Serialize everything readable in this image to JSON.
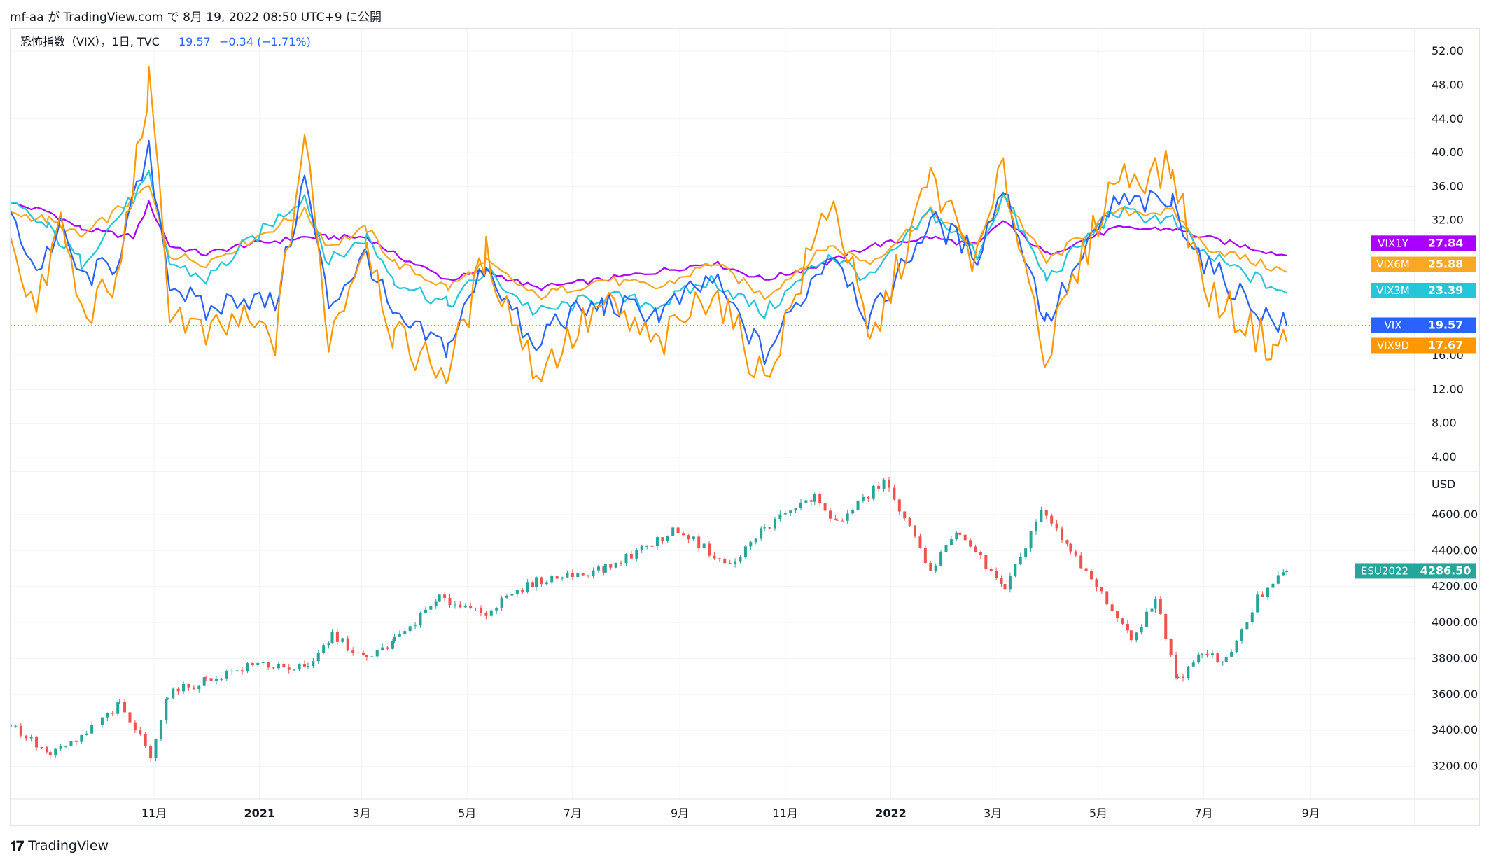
{
  "header": {
    "attribution": "mf-aa が TradingView.com で 8月 19, 2022 08:50 UTC+9 に公開"
  },
  "legend": {
    "symbol": "恐怖指数（VIX），1日, TVC",
    "price": "19.57",
    "change": "−0.34 (−1.71%)"
  },
  "footer": {
    "brand": "TradingView",
    "logo": "TV-logo-icon"
  },
  "colors": {
    "VIX": "#2962ff",
    "VIX9D": "#ff9800",
    "VIX3M": "#26c6da",
    "VIX6M": "#f9a825",
    "VIX1Y": "#aa00ff",
    "up": "#26a69a",
    "down": "#ef5350",
    "grid": "#f0f3fa",
    "axis_text": "#131722"
  },
  "chart_data": [
    {
      "type": "line",
      "title": "恐怖指数（VIX），1日, TVC",
      "y_ticks": [
        "52.00",
        "48.00",
        "44.00",
        "40.00",
        "36.00",
        "32.00",
        "16.00",
        "12.00",
        "8.00",
        "4.00"
      ],
      "ylim": [
        3,
        54
      ],
      "x_range": [
        "2020-08-10",
        "2022-10-31"
      ],
      "series": [
        {
          "name": "VIX1Y",
          "last": "27.84",
          "color": "#aa00ff",
          "points": [
            [
              "2020-08-10",
              34
            ],
            [
              "2020-09-01",
              33
            ],
            [
              "2020-09-20",
              31
            ],
            [
              "2020-10-20",
              30
            ],
            [
              "2020-10-29",
              34
            ],
            [
              "2020-11-10",
              29
            ],
            [
              "2020-12-01",
              28
            ],
            [
              "2020-12-20",
              29
            ],
            [
              "2021-01-27",
              30
            ],
            [
              "2021-02-10",
              30
            ],
            [
              "2021-03-04",
              30
            ],
            [
              "2021-03-20",
              28
            ],
            [
              "2021-04-20",
              25
            ],
            [
              "2021-05-12",
              26
            ],
            [
              "2021-06-10",
              24
            ],
            [
              "2021-07-19",
              25
            ],
            [
              "2021-08-20",
              26
            ],
            [
              "2021-09-20",
              27
            ],
            [
              "2021-10-20",
              25
            ],
            [
              "2021-11-26",
              27
            ],
            [
              "2021-12-20",
              29
            ],
            [
              "2022-01-24",
              30
            ],
            [
              "2022-02-20",
              29
            ],
            [
              "2022-03-07",
              32
            ],
            [
              "2022-04-01",
              28
            ],
            [
              "2022-05-10",
              31
            ],
            [
              "2022-06-13",
              31
            ],
            [
              "2022-07-01",
              30
            ],
            [
              "2022-08-18",
              27.84
            ]
          ]
        },
        {
          "name": "VIX6M",
          "last": "25.88",
          "color": "#f9a825",
          "points": [
            [
              "2020-08-10",
              33
            ],
            [
              "2020-09-01",
              32
            ],
            [
              "2020-09-20",
              30
            ],
            [
              "2020-10-29",
              36
            ],
            [
              "2020-11-10",
              28
            ],
            [
              "2020-12-01",
              27
            ],
            [
              "2021-01-27",
              33
            ],
            [
              "2021-02-10",
              29
            ],
            [
              "2021-03-04",
              31
            ],
            [
              "2021-03-20",
              27
            ],
            [
              "2021-04-20",
              24
            ],
            [
              "2021-05-12",
              27
            ],
            [
              "2021-06-10",
              23
            ],
            [
              "2021-07-19",
              25
            ],
            [
              "2021-08-20",
              24
            ],
            [
              "2021-09-20",
              27
            ],
            [
              "2021-10-20",
              23
            ],
            [
              "2021-11-26",
              29
            ],
            [
              "2021-12-20",
              27
            ],
            [
              "2022-01-24",
              33
            ],
            [
              "2022-02-20",
              29
            ],
            [
              "2022-03-07",
              35
            ],
            [
              "2022-04-01",
              27
            ],
            [
              "2022-05-10",
              33
            ],
            [
              "2022-06-13",
              33
            ],
            [
              "2022-07-01",
              29
            ],
            [
              "2022-08-18",
              25.88
            ]
          ]
        },
        {
          "name": "VIX3M",
          "last": "23.39",
          "color": "#26c6da",
          "points": [
            [
              "2020-08-10",
              34
            ],
            [
              "2020-09-01",
              31
            ],
            [
              "2020-09-20",
              27
            ],
            [
              "2020-10-29",
              37
            ],
            [
              "2020-11-10",
              27
            ],
            [
              "2020-12-01",
              25
            ],
            [
              "2021-01-27",
              35
            ],
            [
              "2021-02-10",
              27
            ],
            [
              "2021-03-04",
              30
            ],
            [
              "2021-03-20",
              25
            ],
            [
              "2021-04-20",
              22
            ],
            [
              "2021-05-12",
              26
            ],
            [
              "2021-06-10",
              21
            ],
            [
              "2021-07-19",
              23
            ],
            [
              "2021-08-20",
              22
            ],
            [
              "2021-09-20",
              25
            ],
            [
              "2021-10-20",
              21
            ],
            [
              "2021-11-26",
              28
            ],
            [
              "2021-12-20",
              25
            ],
            [
              "2022-01-24",
              33
            ],
            [
              "2022-02-20",
              28
            ],
            [
              "2022-03-07",
              35
            ],
            [
              "2022-04-01",
              25
            ],
            [
              "2022-05-10",
              33
            ],
            [
              "2022-06-13",
              32
            ],
            [
              "2022-07-01",
              28
            ],
            [
              "2022-08-18",
              23.39
            ]
          ]
        },
        {
          "name": "VIX",
          "last": "19.57",
          "color": "#2962ff",
          "points": [
            [
              "2020-08-10",
              33
            ],
            [
              "2020-08-25",
              26
            ],
            [
              "2020-09-08",
              31
            ],
            [
              "2020-09-20",
              25
            ],
            [
              "2020-10-10",
              27
            ],
            [
              "2020-10-29",
              40
            ],
            [
              "2020-11-10",
              25
            ],
            [
              "2020-12-01",
              21
            ],
            [
              "2020-12-20",
              23
            ],
            [
              "2021-01-10",
              22
            ],
            [
              "2021-01-27",
              37
            ],
            [
              "2021-02-10",
              22
            ],
            [
              "2021-03-04",
              28
            ],
            [
              "2021-03-20",
              20
            ],
            [
              "2021-04-20",
              17
            ],
            [
              "2021-05-12",
              27
            ],
            [
              "2021-06-10",
              16
            ],
            [
              "2021-06-18",
              20
            ],
            [
              "2021-07-19",
              22
            ],
            [
              "2021-08-20",
              21
            ],
            [
              "2021-09-20",
              25
            ],
            [
              "2021-10-20",
              16
            ],
            [
              "2021-11-26",
              28
            ],
            [
              "2021-12-01",
              28
            ],
            [
              "2021-12-20",
              20
            ],
            [
              "2022-01-24",
              32
            ],
            [
              "2022-02-20",
              28
            ],
            [
              "2022-03-07",
              36
            ],
            [
              "2022-04-01",
              20
            ],
            [
              "2022-05-10",
              34
            ],
            [
              "2022-06-13",
              34
            ],
            [
              "2022-07-01",
              27
            ],
            [
              "2022-08-10",
              20
            ],
            [
              "2022-08-18",
              19.57
            ]
          ]
        },
        {
          "name": "VIX9D",
          "last": "17.67",
          "color": "#ff9800",
          "points": [
            [
              "2020-08-10",
              30
            ],
            [
              "2020-08-25",
              21
            ],
            [
              "2020-09-08",
              32
            ],
            [
              "2020-09-20",
              21
            ],
            [
              "2020-10-10",
              24
            ],
            [
              "2020-10-29",
              48
            ],
            [
              "2020-11-10",
              22
            ],
            [
              "2020-12-01",
              18
            ],
            [
              "2020-12-20",
              20
            ],
            [
              "2021-01-10",
              18
            ],
            [
              "2021-01-27",
              42
            ],
            [
              "2021-02-10",
              18
            ],
            [
              "2021-03-04",
              30
            ],
            [
              "2021-03-20",
              18
            ],
            [
              "2021-04-20",
              14
            ],
            [
              "2021-05-12",
              28
            ],
            [
              "2021-06-10",
              14
            ],
            [
              "2021-07-19",
              22
            ],
            [
              "2021-08-20",
              17
            ],
            [
              "2021-09-20",
              24
            ],
            [
              "2021-10-20",
              13
            ],
            [
              "2021-11-26",
              34
            ],
            [
              "2021-12-01",
              33
            ],
            [
              "2021-12-20",
              17
            ],
            [
              "2022-01-24",
              37
            ],
            [
              "2022-02-20",
              27
            ],
            [
              "2022-03-07",
              38
            ],
            [
              "2022-04-01",
              16
            ],
            [
              "2022-05-10",
              37
            ],
            [
              "2022-06-13",
              38
            ],
            [
              "2022-07-01",
              24
            ],
            [
              "2022-08-10",
              17
            ],
            [
              "2022-08-18",
              17.67
            ]
          ]
        }
      ]
    },
    {
      "type": "candlestick",
      "y_unit": "USD",
      "y_ticks": [
        "4600.00",
        "4400.00",
        "4200.00",
        "4000.00",
        "3800.00",
        "3600.00",
        "3400.00",
        "3200.00"
      ],
      "ylim": [
        3050,
        4810
      ],
      "x_ticks": [
        "11月",
        "2021",
        "3月",
        "5月",
        "7月",
        "9月",
        "11月",
        "2022",
        "3月",
        "5月",
        "7月",
        "9月"
      ],
      "x_tick_dates": [
        "2020-11-01",
        "2021-01-01",
        "2021-03-01",
        "2021-05-01",
        "2021-07-01",
        "2021-09-01",
        "2021-11-01",
        "2022-01-01",
        "2022-03-01",
        "2022-05-01",
        "2022-07-01",
        "2022-09-01"
      ],
      "series": [
        {
          "name": "ESU2022",
          "last": "4286.50",
          "close_points": [
            [
              "2020-08-10",
              3430
            ],
            [
              "2020-09-02",
              3260
            ],
            [
              "2020-09-20",
              3360
            ],
            [
              "2020-10-12",
              3540
            ],
            [
              "2020-10-30",
              3270
            ],
            [
              "2020-11-09",
              3600
            ],
            [
              "2020-12-01",
              3680
            ],
            [
              "2020-12-31",
              3770
            ],
            [
              "2021-01-29",
              3740
            ],
            [
              "2021-02-12",
              3930
            ],
            [
              "2021-03-04",
              3790
            ],
            [
              "2021-03-20",
              3900
            ],
            [
              "2021-04-15",
              4130
            ],
            [
              "2021-05-12",
              4060
            ],
            [
              "2021-06-10",
              4230
            ],
            [
              "2021-07-20",
              4300
            ],
            [
              "2021-08-31",
              4520
            ],
            [
              "2021-09-30",
              4310
            ],
            [
              "2021-10-20",
              4530
            ],
            [
              "2021-11-18",
              4700
            ],
            [
              "2021-12-01",
              4550
            ],
            [
              "2021-12-28",
              4790
            ],
            [
              "2022-01-24",
              4300
            ],
            [
              "2022-02-10",
              4510
            ],
            [
              "2022-03-08",
              4170
            ],
            [
              "2022-03-29",
              4630
            ],
            [
              "2022-04-15",
              4390
            ],
            [
              "2022-05-06",
              4120
            ],
            [
              "2022-05-20",
              3900
            ],
            [
              "2022-06-03",
              4130
            ],
            [
              "2022-06-16",
              3680
            ],
            [
              "2022-06-30",
              3820
            ],
            [
              "2022-07-14",
              3790
            ],
            [
              "2022-08-01",
              4130
            ],
            [
              "2022-08-18",
              4286.5
            ]
          ]
        }
      ]
    }
  ]
}
